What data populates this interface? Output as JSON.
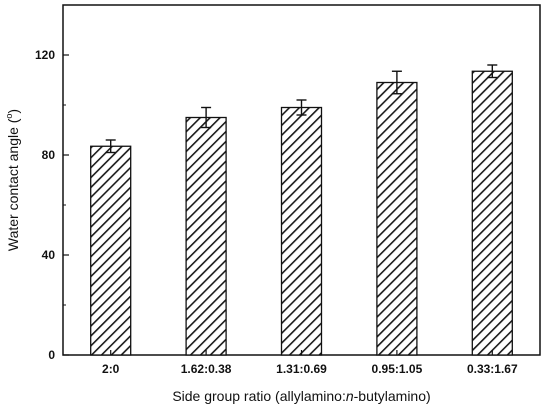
{
  "chart_data": {
    "type": "bar",
    "categories": [
      "2:0",
      "1.62:0.38",
      "1.31:0.69",
      "0.95:1.05",
      "0.33:1.67"
    ],
    "values": [
      83.5,
      95,
      99,
      109,
      113.5
    ],
    "errors": [
      2.5,
      4,
      3,
      4.5,
      2.5
    ],
    "title": "",
    "xlabel": {
      "before": "Side group ratio (allylamino:",
      "italic": "n",
      "after": "-butylamino)"
    },
    "ylabel": {
      "text": "Water contact angle (",
      "sup": "o",
      "close": ")"
    },
    "ylim": [
      0,
      140
    ],
    "yticks": [
      0,
      40,
      80,
      120
    ],
    "bar_fill": "hatched",
    "bar_color": "#1a1a1a",
    "grid": false,
    "legend": "none"
  }
}
